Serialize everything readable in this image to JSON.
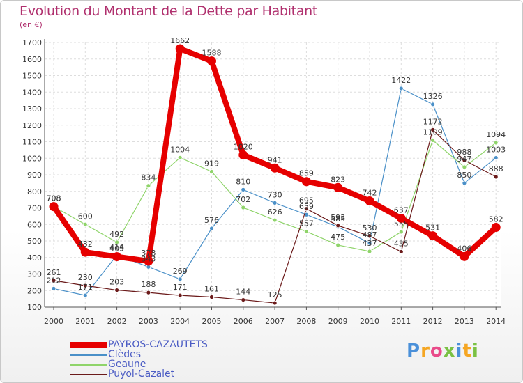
{
  "title": "Evolution du Montant de la Dette par Habitant",
  "unit": "(en €)",
  "logo": {
    "text": "Proxiti",
    "colors": [
      "#4a90d9",
      "#f5a623",
      "#e94b8a",
      "#7ac143",
      "#4a90d9",
      "#f5a623",
      "#7ac143"
    ]
  },
  "chart_data": {
    "type": "line",
    "title": "Evolution du Montant de la Dette par Habitant",
    "ylabel": "(en €)",
    "xlabel": "",
    "x": [
      "2000",
      "2001",
      "2002",
      "2003",
      "2004",
      "2005",
      "2006",
      "2007",
      "2008",
      "2009",
      "2010",
      "2011",
      "2012",
      "2013",
      "2014"
    ],
    "ylim": [
      100,
      1700
    ],
    "yticks": [
      100,
      200,
      300,
      400,
      500,
      600,
      700,
      800,
      900,
      1000,
      1100,
      1200,
      1300,
      1400,
      1500,
      1600,
      1700
    ],
    "grid": true,
    "legend": "bottom-left",
    "series": [
      {
        "name": "PAYROS-CAZAUTETS",
        "color": "#e60000",
        "values": [
          708,
          432,
          405,
          378,
          1662,
          1588,
          1020,
          941,
          859,
          823,
          742,
          637,
          531,
          406,
          582
        ]
      },
      {
        "name": "Clèdes",
        "color": "#4a90c8",
        "values": [
          212,
          171,
          414,
          343,
          269,
          576,
          810,
          730,
          659,
          585,
          487,
          1422,
          1326,
          850,
          1003
        ]
      },
      {
        "name": "Geaune",
        "color": "#8fd46a",
        "values": [
          708,
          600,
          492,
          834,
          1004,
          919,
          702,
          626,
          557,
          475,
          437,
          555,
          1109,
          947,
          1094
        ]
      },
      {
        "name": "Puyol-Cazalet",
        "color": "#6b1a1a",
        "values": [
          261,
          230,
          203,
          188,
          171,
          161,
          144,
          125,
          695,
          593,
          530,
          435,
          1172,
          988,
          888
        ]
      }
    ]
  }
}
